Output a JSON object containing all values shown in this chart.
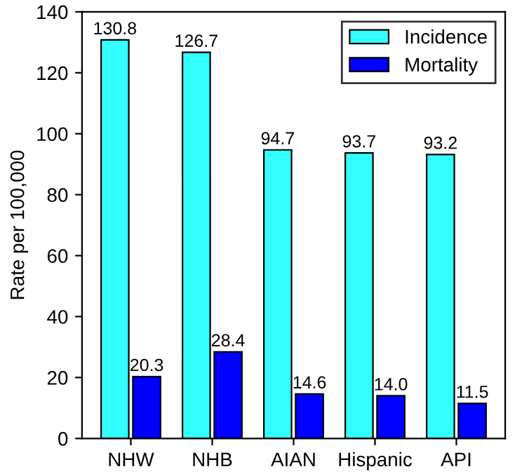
{
  "chart_data": {
    "type": "bar",
    "ylabel": "Rate per 100,000",
    "categories": [
      "NHW",
      "NHB",
      "AIAN",
      "Hispanic",
      "API"
    ],
    "series": [
      {
        "name": "Incidence",
        "color": "#33ffff",
        "values": [
          130.8,
          126.7,
          94.7,
          93.7,
          93.2
        ],
        "value_labels": [
          "130.8",
          "126.7",
          "94.7",
          "93.7",
          "93.2"
        ]
      },
      {
        "name": "Mortality",
        "color": "#0000ff",
        "values": [
          20.3,
          28.4,
          14.6,
          14.0,
          11.5
        ],
        "value_labels": [
          "20.3",
          "28.4",
          "14.6",
          "14.0",
          "11.5"
        ]
      }
    ],
    "ylim": [
      0,
      140
    ],
    "yticks": [
      0,
      20,
      40,
      60,
      80,
      100,
      120,
      140
    ],
    "grid": false,
    "legend": "top right"
  }
}
